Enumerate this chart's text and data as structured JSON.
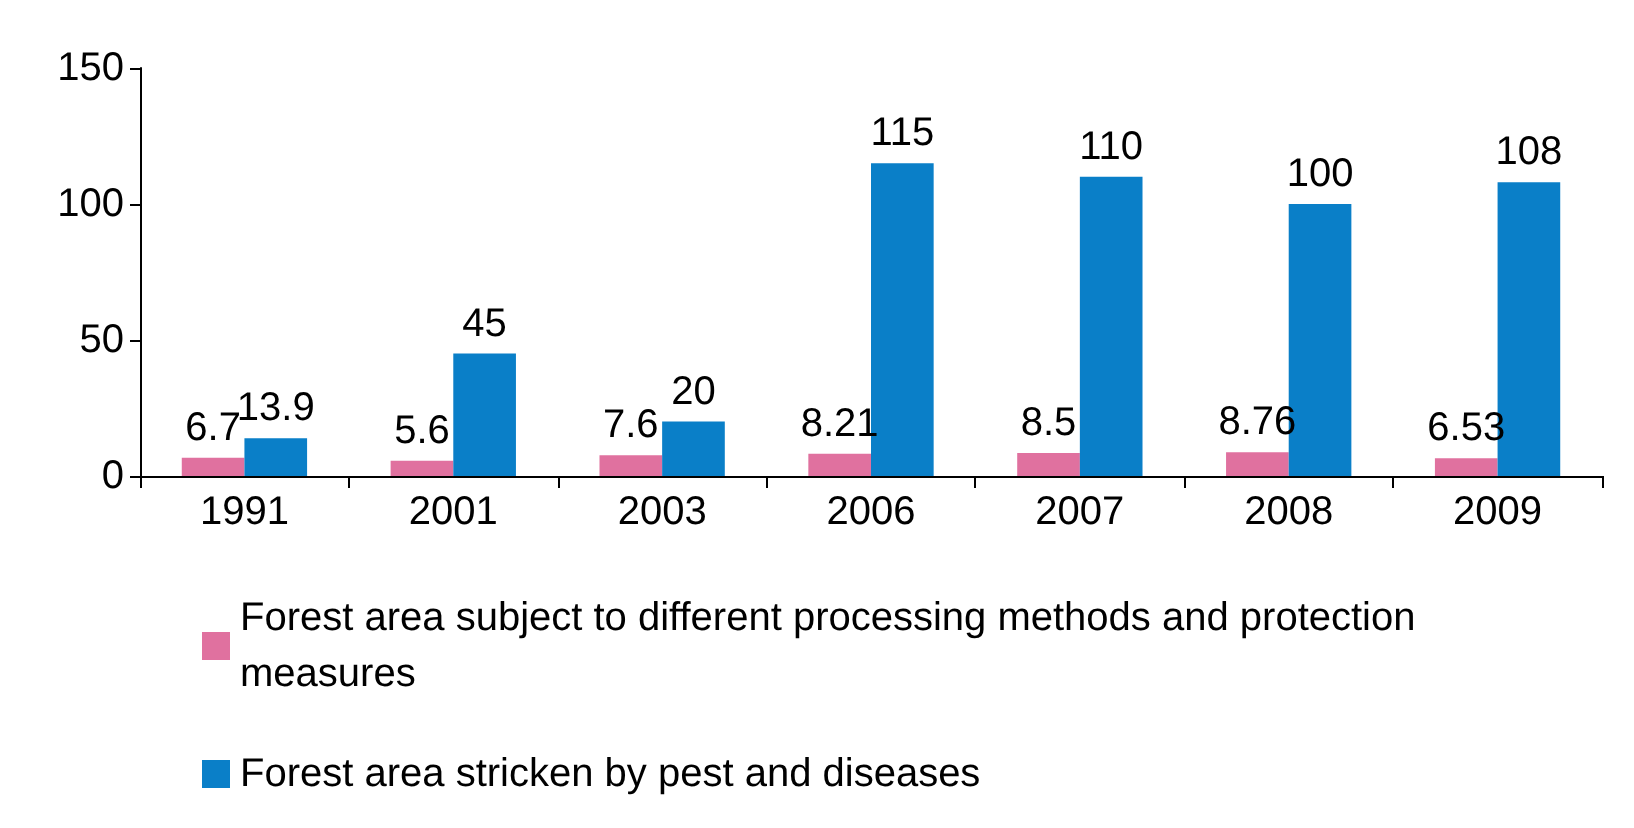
{
  "chart_data": {
    "type": "bar",
    "categories": [
      "1991",
      "2001",
      "2003",
      "2006",
      "2007",
      "2008",
      "2009"
    ],
    "series": [
      {
        "name": "Forest area subject to different processing methods and protection measures",
        "color": "#e0719f",
        "values": [
          6.7,
          5.6,
          7.6,
          8.21,
          8.5,
          8.76,
          6.53
        ]
      },
      {
        "name": "Forest area stricken by pest and diseases",
        "color": "#0a7fc8",
        "values": [
          13.9,
          45,
          20,
          115,
          110,
          100,
          108
        ]
      }
    ],
    "ylim": [
      0,
      150
    ],
    "yticks": [
      0,
      50,
      100,
      150
    ],
    "grid": false,
    "legend": "bottom",
    "data_labels": true
  }
}
